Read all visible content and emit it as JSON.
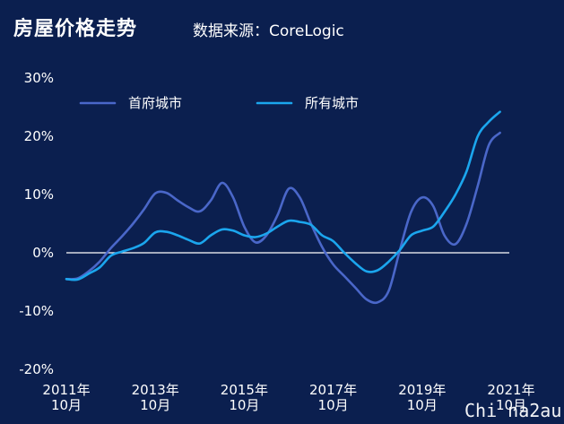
{
  "header": {
    "title": "房屋价格走势",
    "source": "数据来源：CoreLogic"
  },
  "watermark": "Chi na2au",
  "chart_data": {
    "type": "line",
    "title": "房屋价格走势",
    "xlabel": "",
    "ylabel": "",
    "ylim": [
      -20,
      30
    ],
    "y_ticks": [
      "30%",
      "20%",
      "10%",
      "0%",
      "-10%",
      "-20%"
    ],
    "y_tick_values": [
      30,
      20,
      10,
      0,
      -10,
      -20
    ],
    "x_ticks": [
      {
        "year": "2011年",
        "month": "10月",
        "x": 2011.75
      },
      {
        "year": "2013年",
        "month": "10月",
        "x": 2013.75
      },
      {
        "year": "2015年",
        "month": "10月",
        "x": 2015.75
      },
      {
        "year": "2017年",
        "month": "10月",
        "x": 2017.75
      },
      {
        "year": "2019年",
        "month": "10月",
        "x": 2019.75
      },
      {
        "year": "2021年",
        "month": "10月",
        "x": 2021.75
      }
    ],
    "xlim": [
      2011.75,
      2021.75
    ],
    "zero_line": true,
    "legend_position": "top-left",
    "series": [
      {
        "name": "首府城市",
        "color": "#4a67c9",
        "x": [
          2011.75,
          2012.0,
          2012.25,
          2012.5,
          2012.75,
          2013.0,
          2013.25,
          2013.5,
          2013.75,
          2014.0,
          2014.25,
          2014.5,
          2014.75,
          2015.0,
          2015.25,
          2015.5,
          2015.75,
          2016.0,
          2016.25,
          2016.5,
          2016.75,
          2017.0,
          2017.25,
          2017.5,
          2017.75,
          2018.0,
          2018.25,
          2018.5,
          2018.75,
          2019.0,
          2019.25,
          2019.5,
          2019.75,
          2020.0,
          2020.25,
          2020.5,
          2020.75,
          2021.0,
          2021.25,
          2021.5
        ],
        "values": [
          -4.5,
          -4.4,
          -3.2,
          -1.5,
          0.8,
          2.8,
          5.0,
          7.5,
          10.2,
          10.3,
          9.0,
          7.8,
          7.1,
          9.0,
          12.0,
          9.5,
          4.5,
          1.8,
          3.0,
          6.5,
          11.0,
          9.5,
          5.0,
          1.0,
          -2.0,
          -4.0,
          -6.0,
          -8.0,
          -8.5,
          -6.5,
          0.5,
          7.0,
          9.5,
          8.0,
          3.0,
          1.5,
          5.0,
          11.5,
          18.5,
          20.6
        ]
      },
      {
        "name": "所有城市",
        "color": "#1ba6ee",
        "x": [
          2011.75,
          2012.0,
          2012.25,
          2012.5,
          2012.75,
          2013.0,
          2013.25,
          2013.5,
          2013.75,
          2014.0,
          2014.25,
          2014.5,
          2014.75,
          2015.0,
          2015.25,
          2015.5,
          2015.75,
          2016.0,
          2016.25,
          2016.5,
          2016.75,
          2017.0,
          2017.25,
          2017.5,
          2017.75,
          2018.0,
          2018.25,
          2018.5,
          2018.75,
          2019.0,
          2019.25,
          2019.5,
          2019.75,
          2020.0,
          2020.25,
          2020.5,
          2020.75,
          2021.0,
          2021.25,
          2021.5
        ],
        "values": [
          -4.5,
          -4.6,
          -3.6,
          -2.5,
          -0.5,
          0.2,
          0.8,
          1.7,
          3.5,
          3.6,
          3.0,
          2.2,
          1.6,
          3.0,
          4.0,
          3.8,
          3.0,
          2.7,
          3.3,
          4.5,
          5.5,
          5.3,
          4.8,
          3.0,
          2.0,
          0.0,
          -1.8,
          -3.2,
          -3.0,
          -1.5,
          0.5,
          3.0,
          3.8,
          4.5,
          7.0,
          10.0,
          14.0,
          20.0,
          22.5,
          24.2
        ]
      }
    ]
  }
}
